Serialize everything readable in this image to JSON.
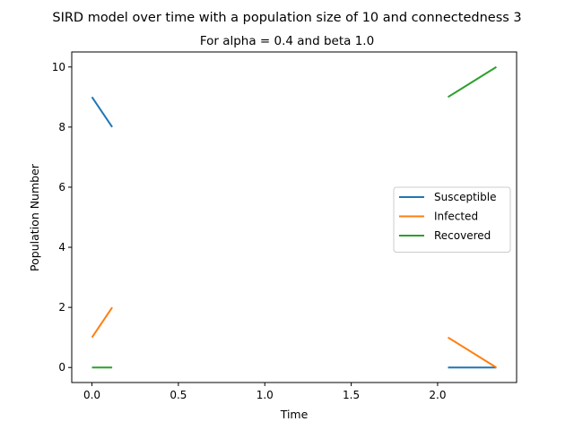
{
  "chart_data": {
    "type": "line",
    "title": "SIRD model over time with a population size of 10 and connectedness 3",
    "subtitle": "For alpha = 0.4 and beta 1.0",
    "xlabel": "Time",
    "ylabel": "Population Number",
    "xlim": [
      -0.117,
      2.457
    ],
    "ylim": [
      -0.5,
      10.5
    ],
    "xticks": [
      0.0,
      0.5,
      1.0,
      1.5,
      2.0
    ],
    "xtick_labels": [
      "0.0",
      "0.5",
      "1.0",
      "1.5",
      "2.0"
    ],
    "yticks": [
      0,
      2,
      4,
      6,
      8,
      10
    ],
    "ytick_labels": [
      "0",
      "2",
      "4",
      "6",
      "8",
      "10"
    ],
    "grid": false,
    "legend_position": "center-right",
    "series": [
      {
        "name": "Susceptible",
        "color": "#1f77b4",
        "segments": [
          [
            [
              0.0,
              9
            ],
            [
              0.117,
              8
            ]
          ],
          [
            [
              2.06,
              0
            ],
            [
              2.34,
              0
            ]
          ]
        ]
      },
      {
        "name": "Infected",
        "color": "#ff7f0e",
        "segments": [
          [
            [
              0.0,
              1
            ],
            [
              0.117,
              2
            ]
          ],
          [
            [
              2.06,
              1
            ],
            [
              2.34,
              0
            ]
          ]
        ]
      },
      {
        "name": "Recovered",
        "color": "#2ca02c",
        "segments": [
          [
            [
              0.0,
              0
            ],
            [
              0.117,
              0
            ]
          ],
          [
            [
              2.06,
              9
            ],
            [
              2.34,
              10
            ]
          ]
        ]
      }
    ]
  }
}
